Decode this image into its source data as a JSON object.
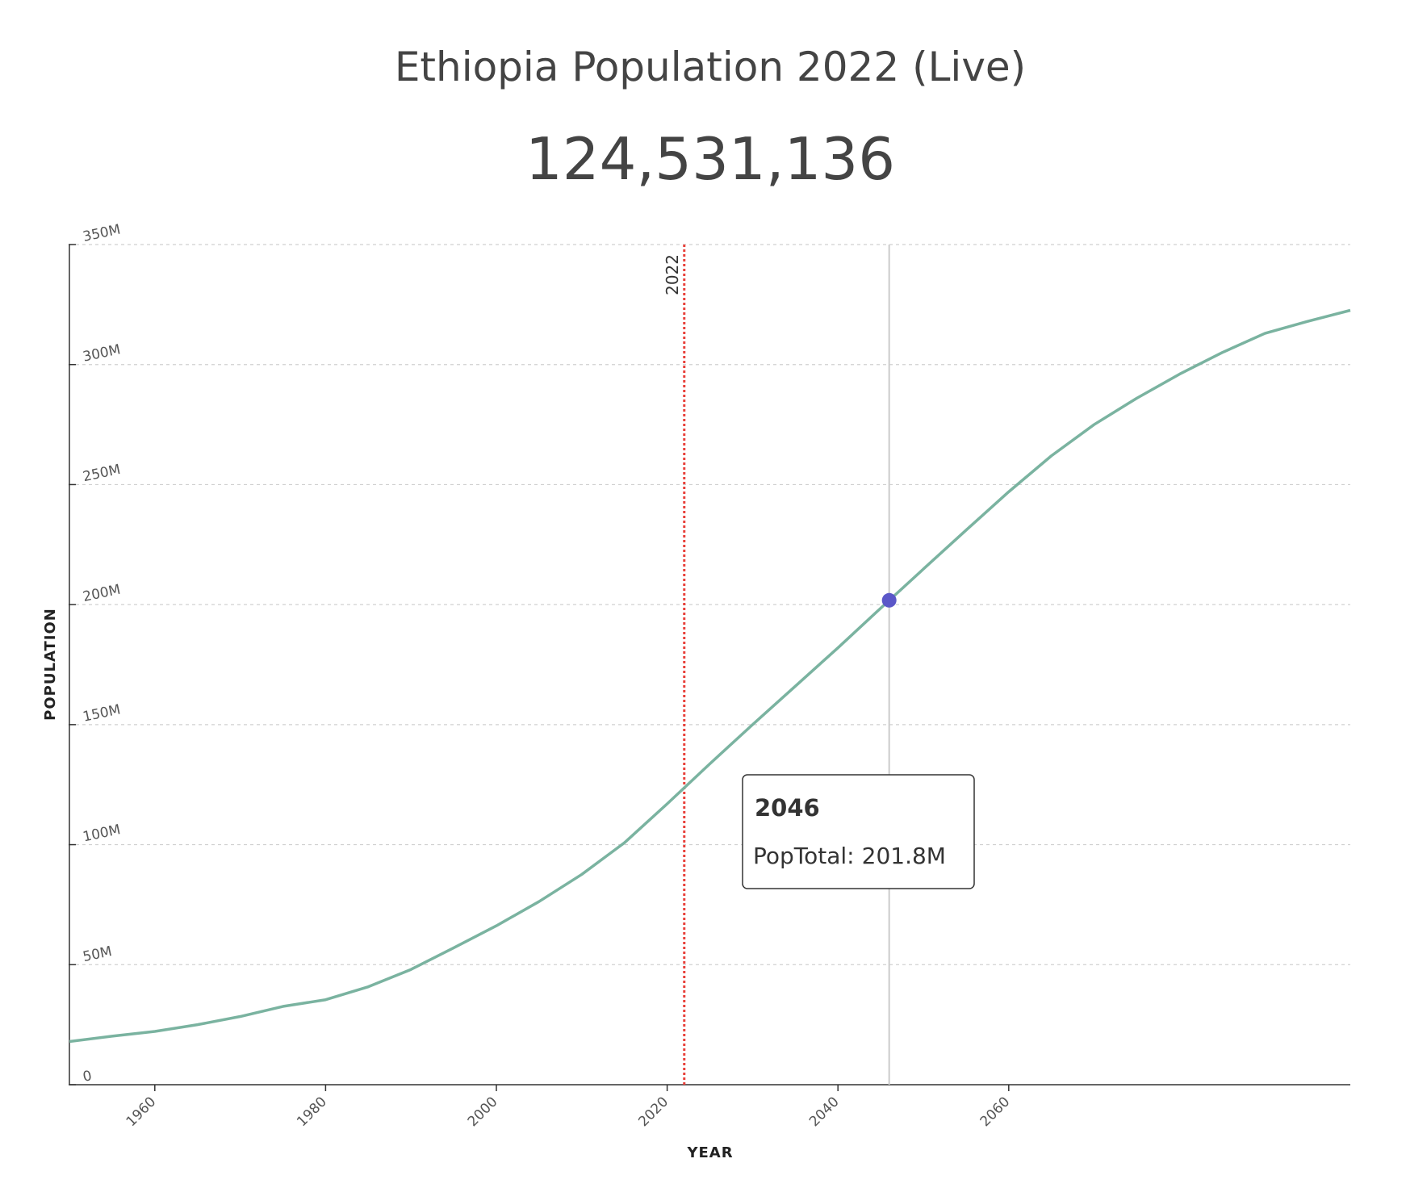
{
  "chart_data": {
    "type": "line",
    "title": "Ethiopia Population 2022 (Live)",
    "headline": "124,531,136",
    "x_label": "YEAR",
    "y_label": "POPULATION",
    "x": [
      1950,
      1955,
      1960,
      1965,
      1970,
      1975,
      1980,
      1985,
      1990,
      1995,
      2000,
      2005,
      2010,
      2015,
      2020,
      2025,
      2030,
      2035,
      2040,
      2045,
      2050,
      2055,
      2060,
      2065,
      2070,
      2075,
      2080,
      2085,
      2090,
      2095,
      2100
    ],
    "values": [
      18.0,
      20.2,
      22.2,
      25.0,
      28.4,
      32.6,
      35.4,
      40.8,
      48.0,
      57.0,
      66.2,
      76.3,
      87.6,
      100.8,
      117.0,
      133.7,
      150.0,
      166.0,
      182.0,
      198.5,
      214.8,
      231.0,
      247.0,
      262.0,
      275.0,
      286.0,
      296.0,
      305.0,
      313.0,
      318.0,
      322.6
    ],
    "color": "#7ab3a0",
    "xlim": [
      1950,
      2100
    ],
    "xticks": [
      1960,
      1980,
      2000,
      2020,
      2040,
      2060
    ],
    "ylim": [
      0,
      350
    ],
    "yticks": [
      0,
      {
        "value": 50,
        "label": "50M"
      },
      {
        "value": 100,
        "label": "100M"
      },
      {
        "value": 150,
        "label": "150M"
      },
      {
        "value": 200,
        "label": "200M"
      },
      {
        "value": 250,
        "label": "250M"
      },
      {
        "value": 300,
        "label": "300M"
      },
      {
        "value": 350,
        "label": "350M"
      }
    ],
    "grid": true,
    "marker": {
      "x": 2022,
      "color": "#e8403a"
    },
    "tooltip": {
      "x": 2046,
      "series_label": "PopTotal:",
      "value": 201.8,
      "value_label": "201.8M",
      "color": "#5b57c8"
    }
  }
}
